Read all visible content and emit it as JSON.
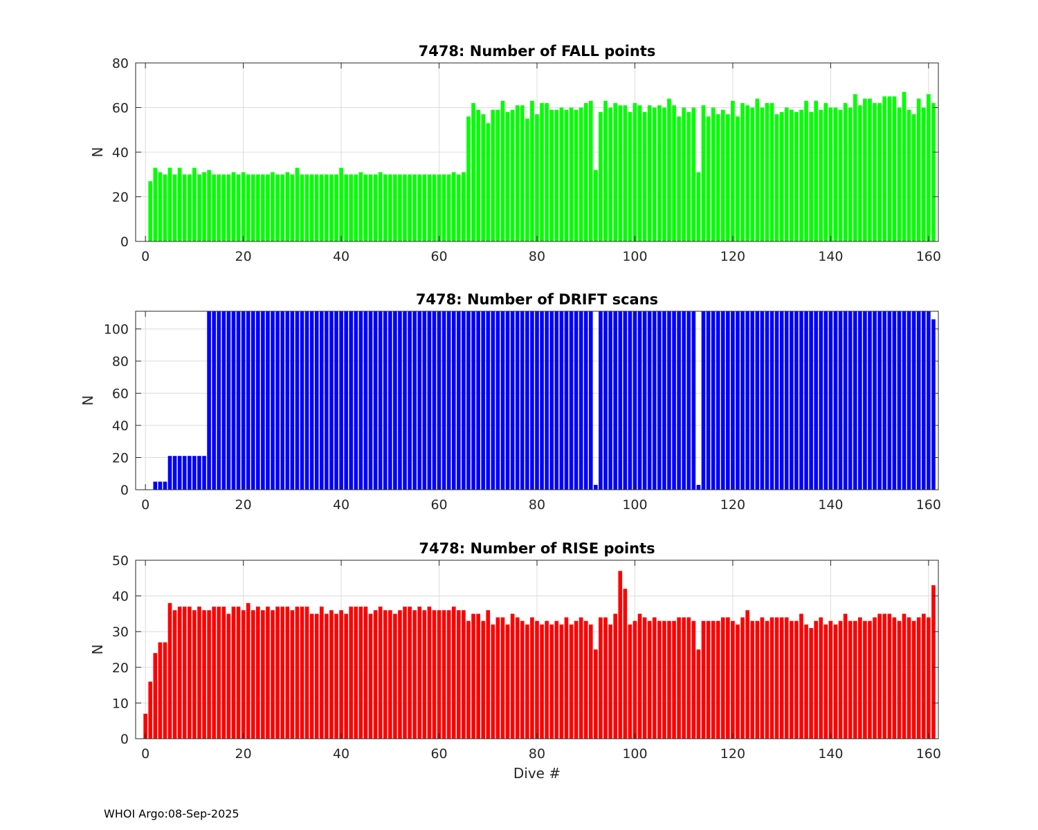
{
  "footer": {
    "text": "WHOI Argo:08-Sep-2025"
  },
  "colors": {
    "fall": "#00ff00",
    "drift": "#0000ff",
    "rise": "#ff0000",
    "grid": "#dcdcdc",
    "axis": "#262626"
  },
  "chart_data": [
    {
      "id": "fall",
      "type": "bar",
      "title": "7478: Number of FALL points",
      "xlabel": "",
      "ylabel": "N",
      "xlim": [
        -2,
        162
      ],
      "ylim": [
        0,
        80
      ],
      "xticks": [
        0,
        20,
        40,
        60,
        80,
        100,
        120,
        140,
        160
      ],
      "yticks": [
        0,
        20,
        40,
        60,
        80
      ],
      "xtick_labels": [
        "0",
        "20",
        "40",
        "60",
        "80",
        "100",
        "120",
        "140",
        "160"
      ],
      "ytick_labels": [
        "0",
        "20",
        "40",
        "60",
        "80"
      ],
      "grid": true,
      "x_start": 0,
      "values": [
        0,
        27,
        33,
        31,
        30,
        33,
        30,
        33,
        30,
        30,
        33,
        30,
        31,
        32,
        30,
        30,
        30,
        30,
        31,
        30,
        31,
        30,
        30,
        30,
        30,
        30,
        31,
        30,
        30,
        31,
        30,
        33,
        30,
        30,
        30,
        30,
        30,
        30,
        30,
        30,
        33,
        30,
        30,
        30,
        31,
        30,
        30,
        30,
        31,
        30,
        30,
        30,
        30,
        30,
        30,
        30,
        30,
        30,
        30,
        30,
        30,
        30,
        30,
        31,
        30,
        31,
        56,
        62,
        59,
        57,
        53,
        59,
        59,
        63,
        58,
        59,
        61,
        61,
        55,
        63,
        57,
        62,
        62,
        59,
        59,
        60,
        59,
        60,
        59,
        60,
        62,
        63,
        32,
        58,
        63,
        60,
        62,
        61,
        61,
        58,
        62,
        61,
        58,
        61,
        60,
        61,
        60,
        64,
        61,
        56,
        60,
        58,
        60,
        31,
        61,
        56,
        60,
        57,
        59,
        57,
        63,
        56,
        62,
        61,
        60,
        64,
        60,
        62,
        62,
        57,
        58,
        60,
        59,
        58,
        59,
        63,
        58,
        63,
        59,
        62,
        60,
        60,
        59,
        62,
        60,
        66,
        61,
        64,
        64,
        62,
        62,
        65,
        65,
        65,
        60,
        67,
        59,
        57,
        64,
        60,
        66,
        62
      ]
    },
    {
      "id": "drift",
      "type": "bar",
      "title": "7478: Number of DRIFT scans",
      "xlabel": "",
      "ylabel": "N",
      "xlim": [
        -2,
        162
      ],
      "ylim": [
        0,
        111
      ],
      "xticks": [
        0,
        20,
        40,
        60,
        80,
        100,
        120,
        140,
        160
      ],
      "yticks": [
        0,
        20,
        40,
        60,
        80,
        100
      ],
      "xtick_labels": [
        "0",
        "20",
        "40",
        "60",
        "80",
        "100",
        "120",
        "140",
        "160"
      ],
      "ytick_labels": [
        "0",
        "20",
        "40",
        "60",
        "80",
        "100"
      ],
      "grid": true,
      "x_start": 0,
      "note": "bars from dive 13 onward exceed the axis upper limit and are clipped",
      "values": [
        0,
        0,
        5,
        5,
        5,
        21,
        21,
        21,
        21,
        21,
        21,
        21,
        21,
        111,
        111,
        111,
        111,
        111,
        111,
        111,
        111,
        111,
        111,
        111,
        111,
        111,
        111,
        111,
        111,
        111,
        111,
        111,
        111,
        111,
        111,
        111,
        111,
        111,
        111,
        111,
        111,
        111,
        111,
        111,
        111,
        111,
        111,
        111,
        111,
        111,
        111,
        111,
        111,
        111,
        111,
        111,
        111,
        111,
        111,
        111,
        111,
        111,
        111,
        111,
        111,
        111,
        111,
        111,
        111,
        111,
        111,
        111,
        111,
        111,
        111,
        111,
        111,
        111,
        111,
        111,
        111,
        111,
        111,
        111,
        111,
        111,
        111,
        111,
        111,
        111,
        111,
        111,
        3,
        111,
        111,
        111,
        111,
        111,
        111,
        111,
        111,
        111,
        111,
        111,
        111,
        111,
        111,
        111,
        111,
        111,
        111,
        111,
        111,
        3,
        111,
        111,
        111,
        111,
        111,
        111,
        111,
        111,
        111,
        111,
        111,
        111,
        111,
        111,
        111,
        111,
        111,
        111,
        111,
        111,
        111,
        111,
        111,
        111,
        111,
        111,
        111,
        111,
        111,
        111,
        111,
        111,
        111,
        111,
        111,
        111,
        111,
        111,
        111,
        111,
        111,
        111,
        111,
        111,
        111,
        111,
        111,
        106
      ]
    },
    {
      "id": "rise",
      "type": "bar",
      "title": "7478: Number of RISE points",
      "xlabel": "Dive #",
      "ylabel": "N",
      "xlim": [
        -2,
        162
      ],
      "ylim": [
        0,
        50
      ],
      "xticks": [
        0,
        20,
        40,
        60,
        80,
        100,
        120,
        140,
        160
      ],
      "yticks": [
        0,
        10,
        20,
        30,
        40,
        50
      ],
      "xtick_labels": [
        "0",
        "20",
        "40",
        "60",
        "80",
        "100",
        "120",
        "140",
        "160"
      ],
      "ytick_labels": [
        "0",
        "10",
        "20",
        "30",
        "40",
        "50"
      ],
      "grid": true,
      "x_start": 0,
      "values": [
        7,
        16,
        24,
        27,
        27,
        38,
        36,
        37,
        37,
        37,
        36,
        37,
        36,
        36,
        37,
        37,
        37,
        35,
        37,
        37,
        36,
        38,
        36,
        37,
        36,
        37,
        36,
        37,
        37,
        37,
        36,
        37,
        37,
        37,
        35,
        35,
        37,
        35,
        36,
        35,
        36,
        35,
        37,
        37,
        37,
        37,
        35,
        36,
        37,
        36,
        36,
        35,
        36,
        37,
        37,
        36,
        37,
        36,
        37,
        36,
        36,
        36,
        36,
        37,
        36,
        36,
        33,
        35,
        35,
        33,
        36,
        32,
        34,
        34,
        32,
        35,
        34,
        33,
        32,
        34,
        33,
        32,
        33,
        32,
        33,
        32,
        34,
        32,
        33,
        34,
        33,
        32,
        25,
        34,
        34,
        32,
        35,
        47,
        42,
        32,
        33,
        35,
        34,
        33,
        34,
        33,
        33,
        33,
        33,
        34,
        34,
        34,
        33,
        25,
        33,
        33,
        33,
        33,
        34,
        34,
        33,
        32,
        34,
        36,
        33,
        33,
        34,
        33,
        34,
        34,
        34,
        34,
        33,
        33,
        35,
        32,
        31,
        33,
        34,
        32,
        33,
        32,
        33,
        35,
        33,
        33,
        34,
        33,
        33,
        34,
        35,
        35,
        35,
        34,
        33,
        35,
        34,
        33,
        34,
        35,
        34,
        43
      ]
    }
  ]
}
